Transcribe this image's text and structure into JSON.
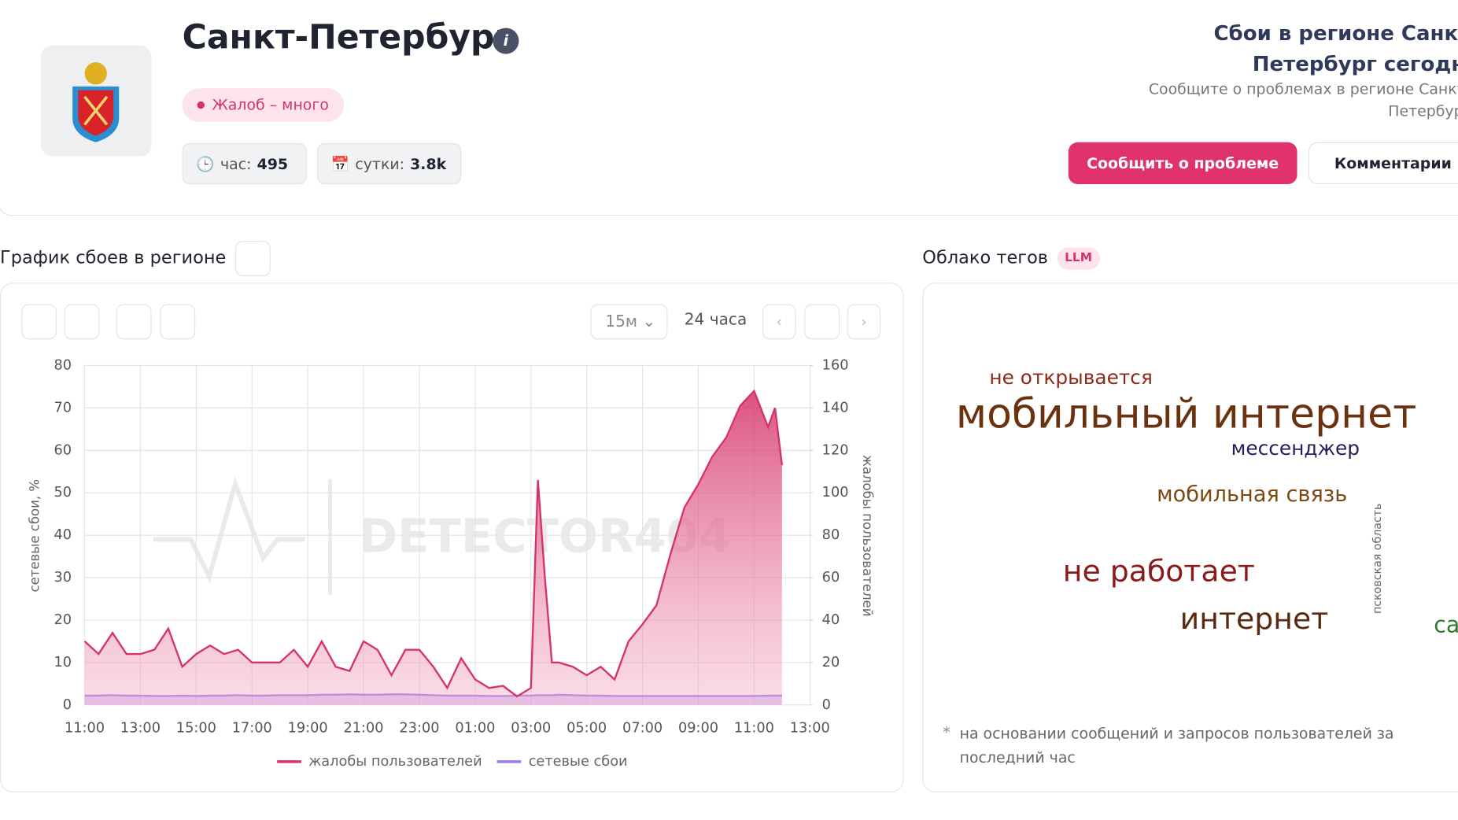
{
  "header": {
    "title": "Санкт-Петербург",
    "status": "Жалоб – много",
    "stats": [
      {
        "label": "час:",
        "value": 495
      },
      {
        "label": "сутки:",
        "value": "3.8k"
      }
    ],
    "summary_title": "Сбои в регионе Санкт-Петербург сегодня",
    "summary_text": "Сообщите о проблемах в регионе Санкт-Петербург",
    "buttons": [
      "Сообщить о проблеме",
      "Комментарии"
    ]
  },
  "chart_section": {
    "title": "График сбоев в регионе",
    "interval": "15м",
    "period": "24 часа"
  },
  "tag_cloud": {
    "title": "Облако тегов",
    "badge": "LLM",
    "tags": [
      "не открывается",
      "мобильный интернет",
      "мессенджер",
      "мобильная связь",
      "не работает",
      "интернет",
      "псковская область",
      "са"
    ],
    "footnote_mark": "*",
    "footnote": "на основании сообщений и запросов пользователей за последний час"
  },
  "chart_data": {
    "type": "line",
    "watermark": "DETECTOR404",
    "ylabel": "сетевые сбои, %",
    "y2label": "жалобы пользователей",
    "x": [
      0,
      0.5,
      1,
      1.5,
      2,
      2.5,
      3,
      3.5,
      4,
      4.5,
      5,
      5.5,
      6,
      6.5,
      7,
      7.5,
      8,
      8.5,
      9,
      9.5,
      10,
      10.5,
      11,
      11.5,
      12,
      12.5,
      13,
      13.5,
      14,
      14.5,
      15,
      15.5,
      16,
      16.25,
      16.5,
      16.75,
      17,
      17.5,
      18,
      18.5,
      19,
      19.5,
      20,
      20.5,
      21,
      21.5,
      22,
      22.5,
      23,
      23.5,
      24,
      24.5,
      24.75,
      25
    ],
    "series": [
      {
        "name": "жалобы пользователей",
        "color": "#d6336c",
        "axis": "y2",
        "values": [
          30,
          24,
          34,
          24,
          24,
          26,
          36,
          18,
          24,
          28,
          24,
          26,
          20,
          20,
          20,
          26,
          18,
          30,
          18,
          16,
          30,
          26,
          14,
          26,
          26,
          18,
          8,
          22,
          12,
          8,
          9,
          4,
          8,
          106,
          60,
          20,
          20,
          18,
          14,
          18,
          12,
          30,
          38,
          47,
          71,
          93,
          104,
          117,
          126,
          141,
          148,
          131,
          140,
          113
        ]
      },
      {
        "name": "сетевые сбои",
        "color": "#9f7aea",
        "values": [
          2.2,
          2.2,
          2.3,
          2.2,
          2.2,
          2.1,
          2.1,
          2.2,
          2.1,
          2.2,
          2.2,
          2.3,
          2.2,
          2.2,
          2.3,
          2.3,
          2.3,
          2.4,
          2.4,
          2.5,
          2.4,
          2.4,
          2.5,
          2.5,
          2.4,
          2.3,
          2.2,
          2.2,
          2.2,
          2.1,
          2.1,
          2.2,
          2.2,
          2.3,
          2.3,
          2.3,
          2.4,
          2.3,
          2.2,
          2.2,
          2.1,
          2.1,
          2.1,
          2.1,
          2.1,
          2.1,
          2.1,
          2.1,
          2.1,
          2.1,
          2.1,
          2.2,
          2.2,
          2.2
        ]
      }
    ],
    "xlim": [
      0,
      26
    ],
    "xticks": [
      {
        "value": 0,
        "label": "11:00"
      },
      {
        "value": 2,
        "label": "13:00"
      },
      {
        "value": 4,
        "label": "15:00"
      },
      {
        "value": 6,
        "label": "17:00"
      },
      {
        "value": 8,
        "label": "19:00"
      },
      {
        "value": 10,
        "label": "21:00"
      },
      {
        "value": 12,
        "label": "23:00"
      },
      {
        "value": 14,
        "label": "01:00"
      },
      {
        "value": 16,
        "label": "03:00"
      },
      {
        "value": 18,
        "label": "05:00"
      },
      {
        "value": 20,
        "label": "07:00"
      },
      {
        "value": 22,
        "label": "09:00"
      },
      {
        "value": 24,
        "label": "11:00"
      },
      {
        "value": 26,
        "label": "13:00"
      }
    ],
    "ylim": [
      0,
      80
    ],
    "yticks": [
      0,
      10,
      20,
      30,
      40,
      50,
      60,
      70,
      80
    ],
    "y2lim": [
      0,
      160
    ],
    "y2ticks": [
      0,
      20,
      40,
      60,
      80,
      100,
      120,
      140,
      160
    ],
    "grid": true
  }
}
